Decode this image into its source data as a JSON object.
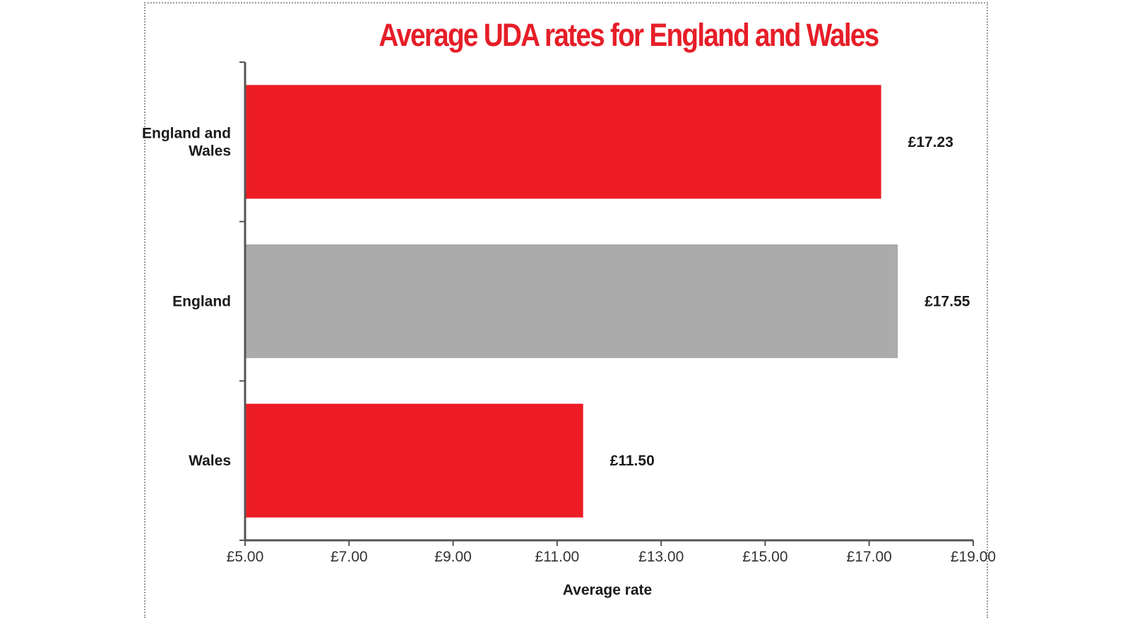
{
  "chart_data": {
    "type": "bar",
    "orientation": "horizontal",
    "title": "Average UDA rates for England and Wales",
    "xlabel": "Average rate",
    "ylabel": "",
    "categories": [
      [
        "England and",
        "Wales"
      ],
      [
        "England"
      ],
      [
        "Wales"
      ]
    ],
    "values": [
      17.23,
      17.55,
      11.5
    ],
    "value_labels": [
      "£17.23",
      "£17.55",
      "£11.50"
    ],
    "bar_colors": [
      "#ed1c24",
      "#ababab",
      "#ed1c24"
    ],
    "xlim": [
      5,
      19
    ],
    "x_ticks": [
      5,
      7,
      9,
      11,
      13,
      15,
      17,
      19
    ],
    "x_tick_labels": [
      "£5.00",
      "£7.00",
      "£9.00",
      "£11.00",
      "£13.00",
      "£15.00",
      "£17.00",
      "£19.00"
    ],
    "grid": false,
    "legend": "none"
  },
  "colors": {
    "title": "#e61e28",
    "axis": "#555555"
  }
}
